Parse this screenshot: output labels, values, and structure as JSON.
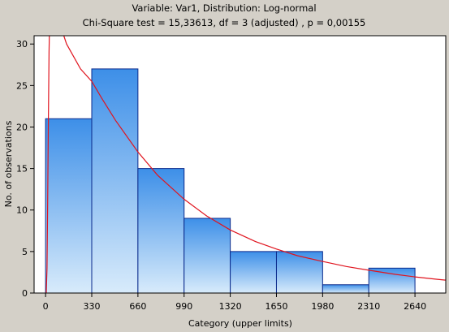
{
  "chart_data": {
    "type": "histogram",
    "title": "Variable: Var1, Distribution: Log-normal",
    "subtitle": "Chi-Square test = 15,33613, df = 3 (adjusted) , p = 0,00155",
    "xlabel": "Category (upper limits)",
    "ylabel": "No. of observations",
    "xlim": [
      -82,
      2860
    ],
    "ylim": [
      0,
      31
    ],
    "x_ticks": [
      0,
      330,
      660,
      990,
      1320,
      1650,
      1980,
      2310,
      2640
    ],
    "x_tick_labels": [
      "0",
      "330",
      "660",
      "990",
      "1320",
      "1650",
      "1980",
      "2310",
      "2640"
    ],
    "y_ticks": [
      0,
      5,
      10,
      15,
      20,
      25,
      30
    ],
    "y_tick_labels": [
      "0",
      "5",
      "10",
      "15",
      "20",
      "25",
      "30"
    ],
    "bins": [
      {
        "from": 0,
        "to": 330,
        "count": 21
      },
      {
        "from": 330,
        "to": 660,
        "count": 27
      },
      {
        "from": 660,
        "to": 990,
        "count": 15
      },
      {
        "from": 990,
        "to": 1320,
        "count": 9
      },
      {
        "from": 1320,
        "to": 1650,
        "count": 5
      },
      {
        "from": 1650,
        "to": 1980,
        "count": 5
      },
      {
        "from": 1980,
        "to": 2310,
        "count": 1
      },
      {
        "from": 2310,
        "to": 2640,
        "count": 3
      }
    ],
    "fitted_curve": {
      "distribution": "Log-normal",
      "points": [
        [
          2,
          0
        ],
        [
          5,
          0.1
        ],
        [
          10,
          3
        ],
        [
          15,
          11
        ],
        [
          20,
          21
        ],
        [
          25,
          29
        ],
        [
          30,
          34
        ],
        [
          35,
          36
        ],
        [
          50,
          36.5
        ],
        [
          65,
          35.5
        ],
        [
          80,
          34
        ],
        [
          100,
          32.5
        ],
        [
          150,
          30
        ],
        [
          200,
          28.5
        ],
        [
          250,
          27
        ],
        [
          330,
          25.5
        ],
        [
          400,
          23.5
        ],
        [
          500,
          20.8
        ],
        [
          660,
          17
        ],
        [
          800,
          14.2
        ],
        [
          990,
          11.3
        ],
        [
          1150,
          9.3
        ],
        [
          1320,
          7.6
        ],
        [
          1500,
          6.2
        ],
        [
          1650,
          5.3
        ],
        [
          1800,
          4.5
        ],
        [
          1980,
          3.8
        ],
        [
          2150,
          3.2
        ],
        [
          2310,
          2.75
        ],
        [
          2500,
          2.25
        ],
        [
          2640,
          1.95
        ],
        [
          2800,
          1.65
        ],
        [
          2860,
          1.55
        ]
      ]
    },
    "grid": false,
    "colors": {
      "background": "#d4d0c8",
      "plot_background": "#ffffff",
      "bar_top": "#3d8fe8",
      "bar_bottom": "#d8ebfb",
      "bar_edge": "#0a2a8c",
      "curve": "#e0141e",
      "axis": "#000000"
    }
  }
}
